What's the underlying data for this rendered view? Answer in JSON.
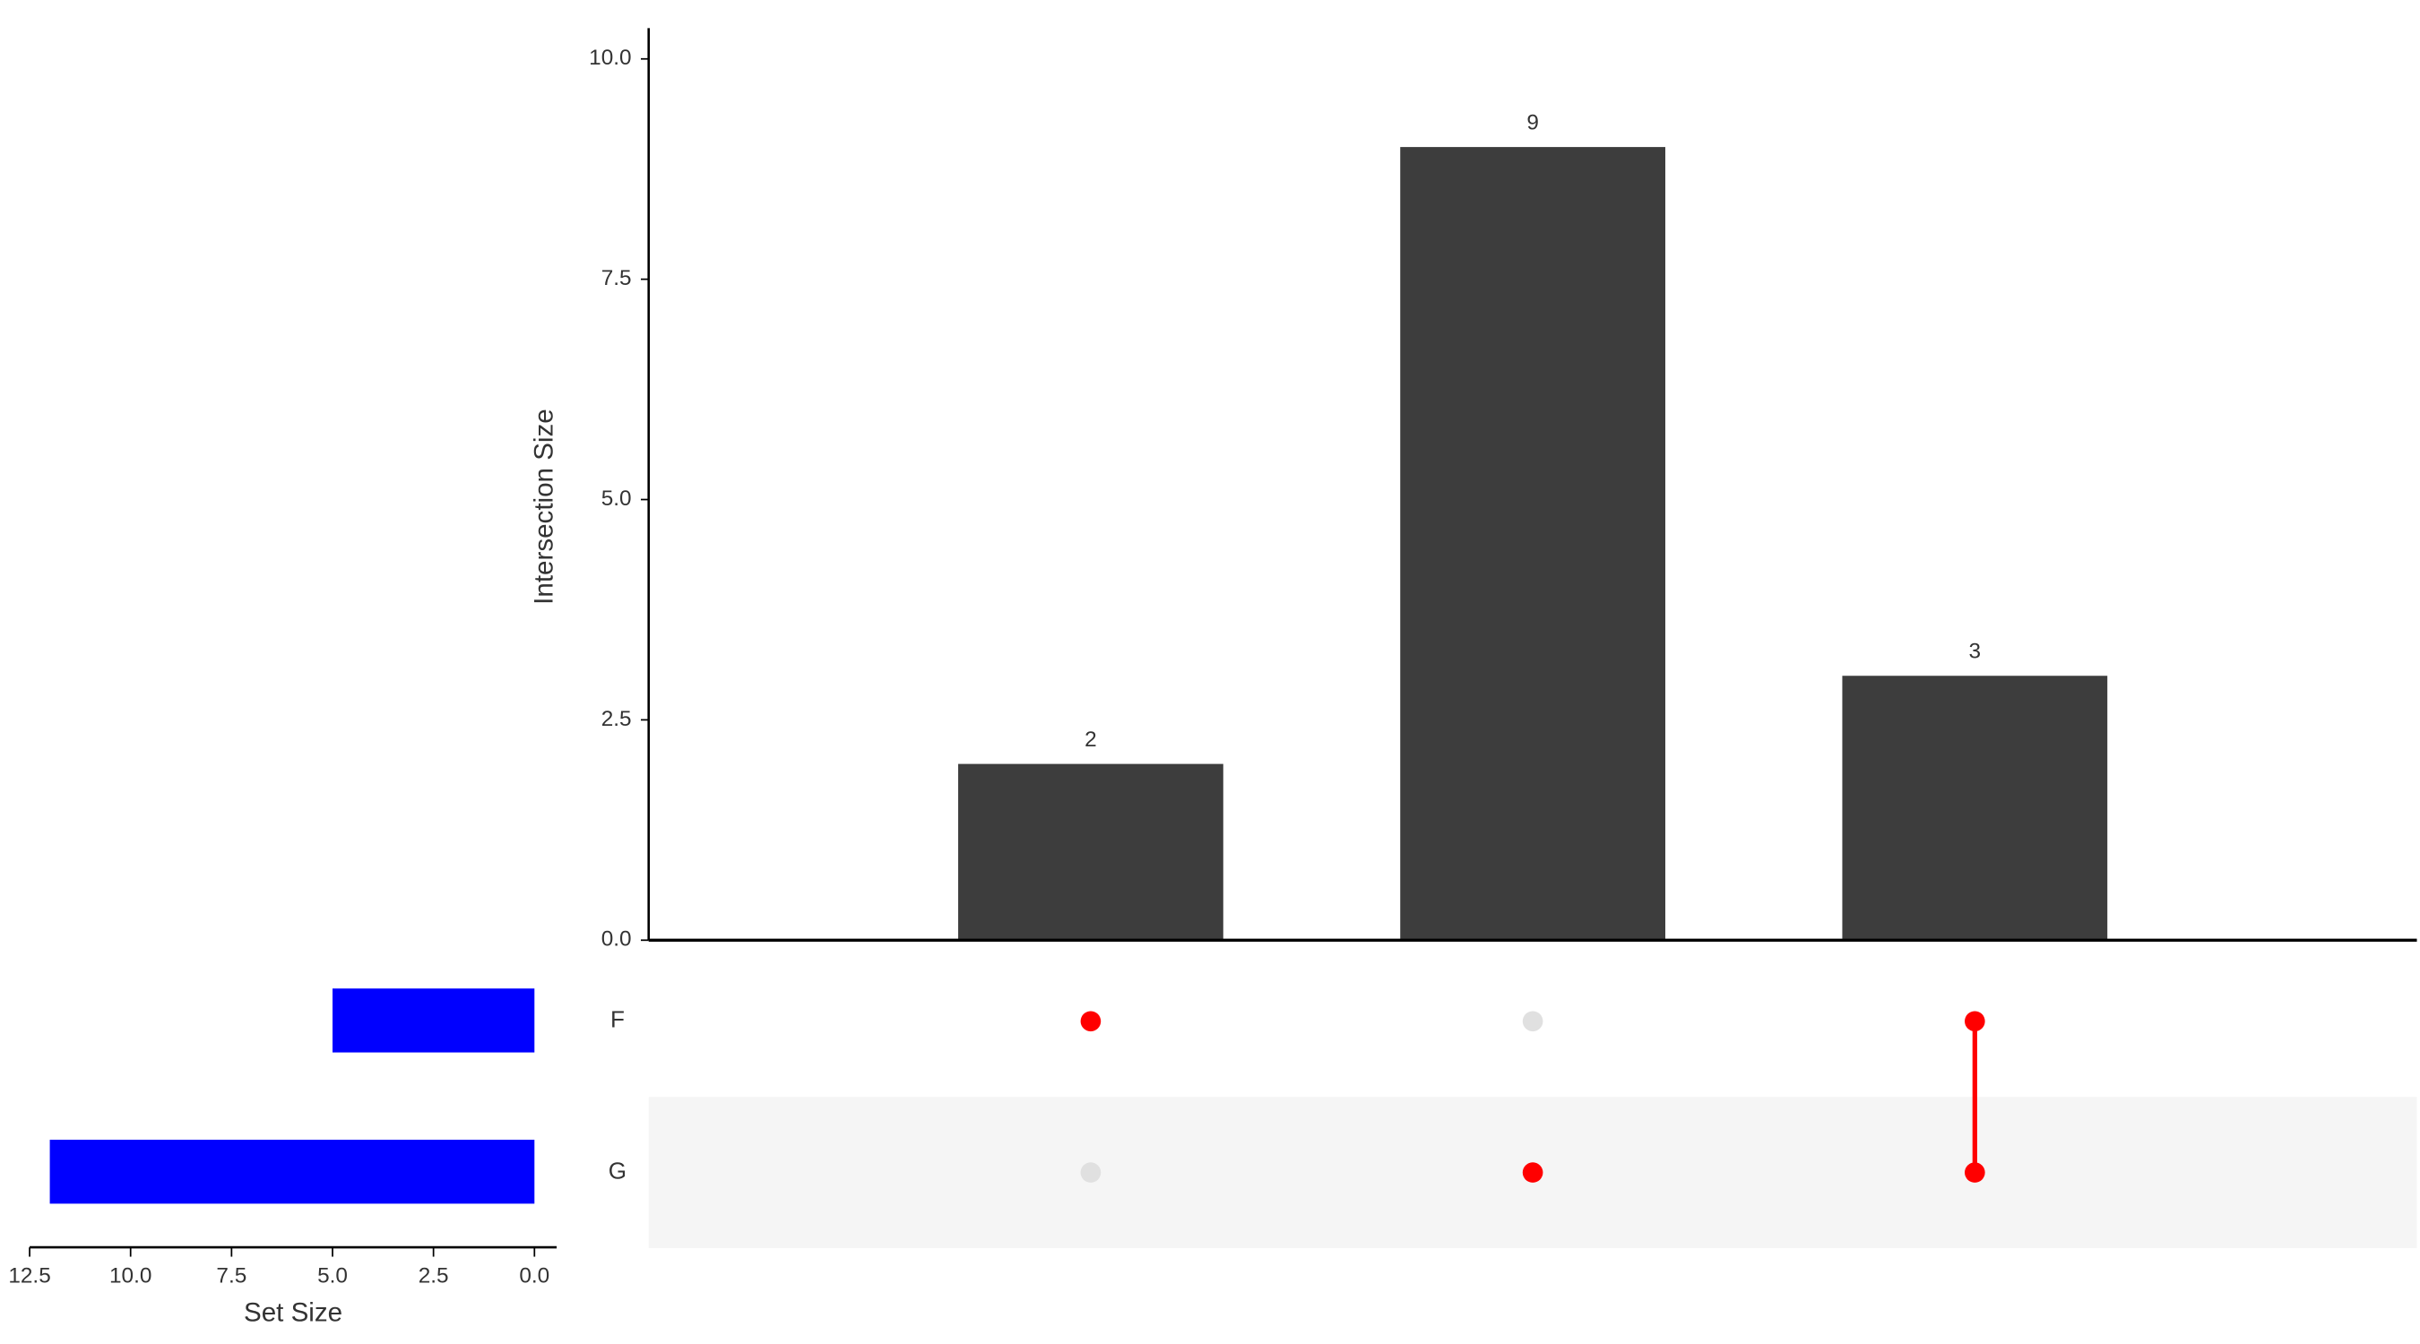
{
  "chart_data": {
    "type": "upset",
    "y_label": "Intersection Size",
    "intersections": {
      "values": [
        2,
        9,
        3
      ],
      "color": "#3d3d3d",
      "ylim": [
        0,
        10.35
      ],
      "yticks": [
        {
          "value": 0,
          "label": "0.0"
        },
        {
          "value": 2.5,
          "label": "2.5"
        },
        {
          "value": 5,
          "label": "5.0"
        },
        {
          "value": 7.5,
          "label": "7.5"
        },
        {
          "value": 10,
          "label": "10.0"
        }
      ]
    },
    "sets": {
      "names": [
        "F",
        "G"
      ],
      "values": [
        5,
        12
      ],
      "color": "#0000ff",
      "x_label": "Set Size",
      "xlim": [
        12.5,
        -0.55
      ],
      "xticks": [
        {
          "value": 12.5,
          "label": "12.5"
        },
        {
          "value": 10,
          "label": "10.0"
        },
        {
          "value": 7.5,
          "label": "7.5"
        },
        {
          "value": 5,
          "label": "5.0"
        },
        {
          "value": 2.5,
          "label": "2.5"
        },
        {
          "value": 0,
          "label": "0.0"
        }
      ]
    },
    "matrix": [
      [
        1,
        0,
        1
      ],
      [
        0,
        1,
        1
      ]
    ],
    "dot_color": "#ff0000",
    "inactive_color": "#e0e0e0"
  }
}
